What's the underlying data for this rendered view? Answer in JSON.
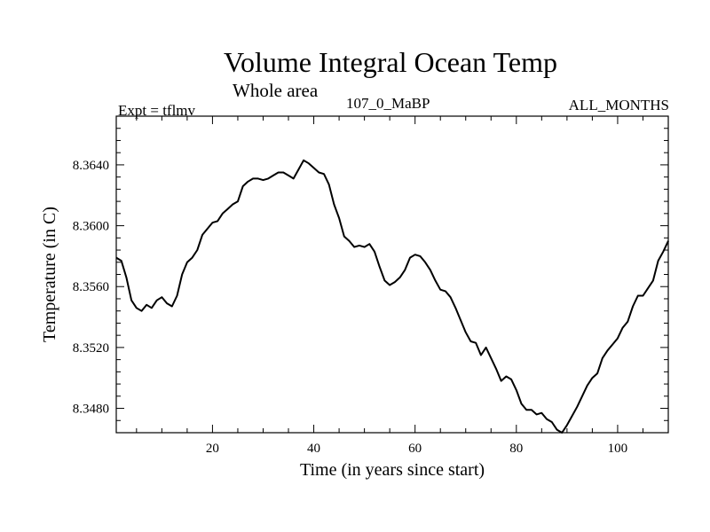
{
  "chart_data": {
    "type": "line",
    "title": "Volume Integral Ocean Temp",
    "subtitle": "Whole area",
    "left_label": "Expt = tflmv",
    "center_label": "107_0_MaBP",
    "right_label": "ALL_MONTHS",
    "xlabel": "Time (in years since start)",
    "ylabel": "Temperature (in C)",
    "xlim": [
      1,
      110
    ],
    "ylim": [
      8.3464,
      8.3672
    ],
    "x_ticks": [
      20,
      40,
      60,
      80,
      100
    ],
    "x_tick_labels": [
      "20",
      "40",
      "60",
      "80",
      "100"
    ],
    "y_ticks": [
      8.348,
      8.352,
      8.356,
      8.36,
      8.364
    ],
    "y_tick_labels": [
      "8.3480",
      "8.3520",
      "8.3560",
      "8.3600",
      "8.3640"
    ],
    "series": [
      {
        "name": "Volume Integral Ocean Temp",
        "x": [
          1,
          2,
          3,
          4,
          5,
          6,
          7,
          8,
          9,
          10,
          11,
          12,
          13,
          14,
          15,
          16,
          17,
          18,
          19,
          20,
          21,
          22,
          23,
          24,
          25,
          26,
          27,
          28,
          29,
          30,
          31,
          32,
          33,
          34,
          35,
          36,
          37,
          38,
          39,
          40,
          41,
          42,
          43,
          44,
          45,
          46,
          47,
          48,
          49,
          50,
          51,
          52,
          53,
          54,
          55,
          56,
          57,
          58,
          59,
          60,
          61,
          62,
          63,
          64,
          65,
          66,
          67,
          68,
          69,
          70,
          71,
          72,
          73,
          74,
          75,
          76,
          77,
          78,
          79,
          80,
          81,
          82,
          83,
          84,
          85,
          86,
          87,
          88,
          89,
          90,
          91,
          92,
          93,
          94,
          95,
          96,
          97,
          98,
          99,
          100,
          101,
          102,
          103,
          104,
          105,
          106,
          107,
          108,
          109,
          110
        ],
        "values": [
          8.3579,
          8.3577,
          8.3566,
          8.3551,
          8.3546,
          8.3544,
          8.3548,
          8.3546,
          8.3551,
          8.3553,
          8.3549,
          8.3547,
          8.3554,
          8.3568,
          8.3576,
          8.3579,
          8.3584,
          8.3594,
          8.3598,
          8.3602,
          8.3603,
          8.3608,
          8.3611,
          8.3614,
          8.3616,
          8.3626,
          8.3629,
          8.3631,
          8.3631,
          8.363,
          8.3631,
          8.3633,
          8.3635,
          8.3635,
          8.3633,
          8.3631,
          8.3637,
          8.3643,
          8.3641,
          8.3638,
          8.3635,
          8.3634,
          8.3627,
          8.3614,
          8.3605,
          8.3593,
          8.359,
          8.3586,
          8.3587,
          8.3586,
          8.3588,
          8.3583,
          8.3573,
          8.3564,
          8.3561,
          8.3563,
          8.3566,
          8.3571,
          8.3579,
          8.3581,
          8.358,
          8.3576,
          8.3571,
          8.3564,
          8.3558,
          8.3557,
          8.3553,
          8.3546,
          8.3538,
          8.353,
          8.3524,
          8.3523,
          8.3515,
          8.352,
          8.3513,
          8.3506,
          8.3498,
          8.3501,
          8.3499,
          8.3492,
          8.3483,
          8.3479,
          8.3479,
          8.3476,
          8.3477,
          8.3473,
          8.3471,
          8.3466,
          8.3464,
          8.3469,
          8.3475,
          8.3481,
          8.3488,
          8.3495,
          8.35,
          8.3503,
          8.3513,
          8.3518,
          8.3522,
          8.3526,
          8.3533,
          8.3537,
          8.3547,
          8.3554,
          8.3554,
          8.3559,
          8.3564,
          8.3577,
          8.3583,
          8.359
        ]
      }
    ]
  }
}
